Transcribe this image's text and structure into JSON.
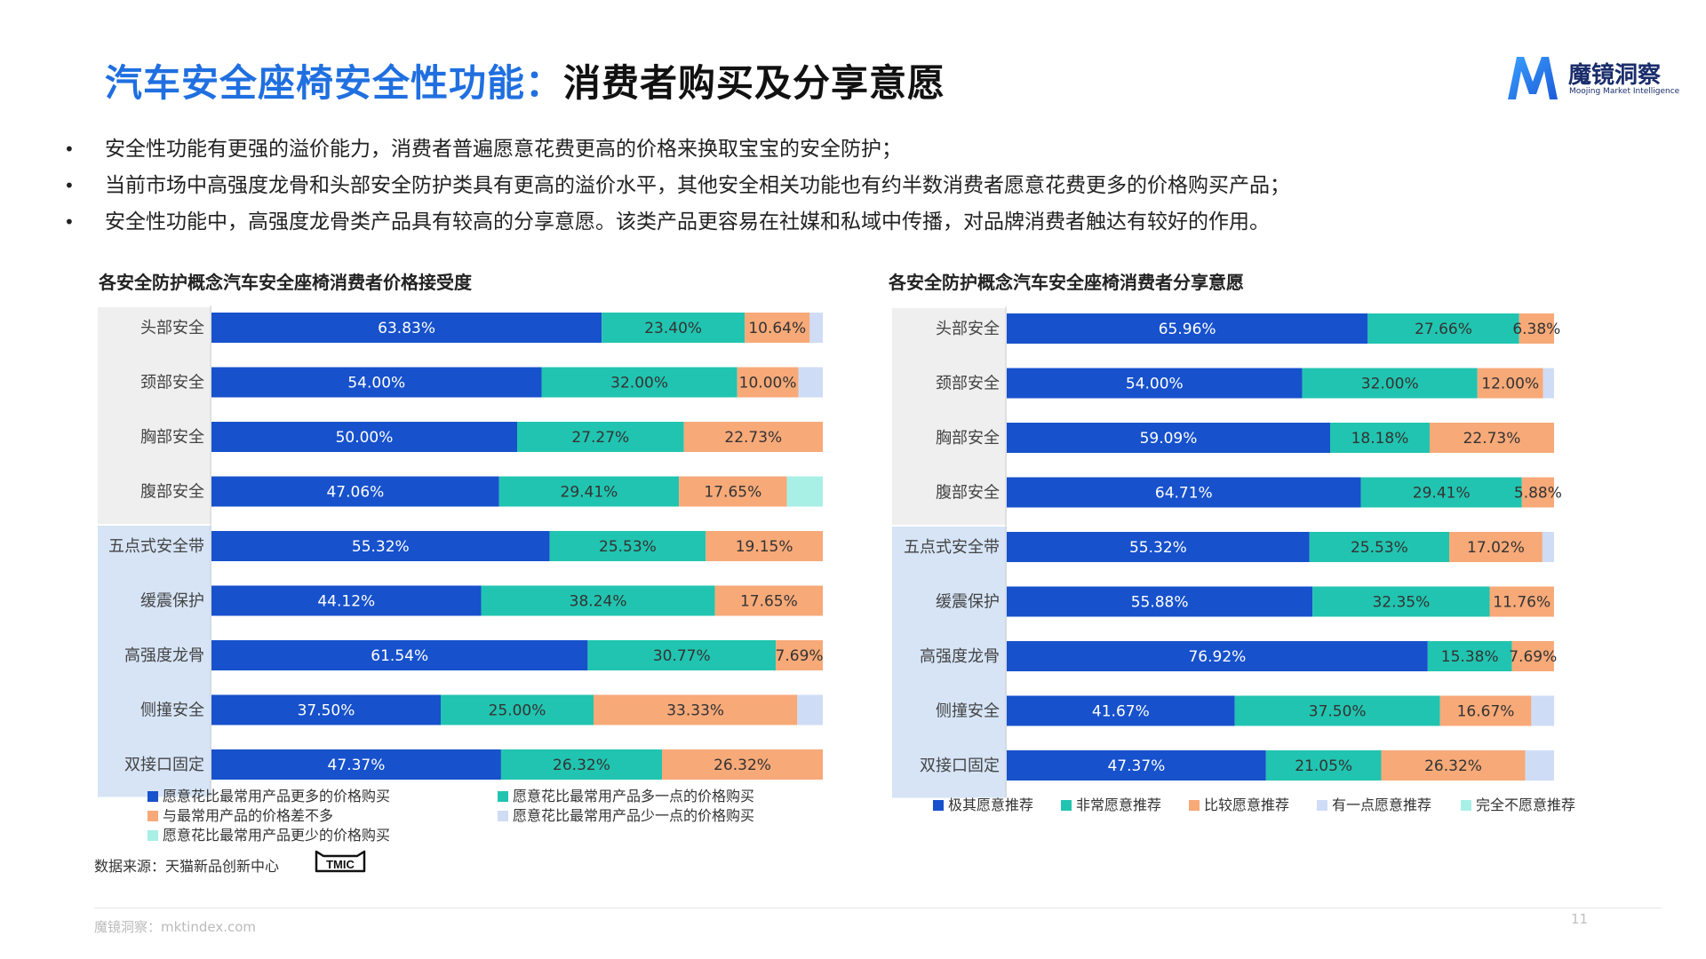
{
  "title": {
    "part1": "汽车安全座椅安全性功能：",
    "part2": "消费者购买及分享意愿"
  },
  "logo": {
    "name": "魔镜洞察",
    "sub": "Moojing Market Intelligence",
    "accent": "#2f7ff0"
  },
  "bullets": [
    "安全性功能有更强的溢价能力，消费者普遍愿意花费更高的价格来换取宝宝的安全防护；",
    "当前市场中高强度龙骨和头部安全防护类具有更高的溢价水平，其他安全相关功能也有约半数消费者愿意花费更多的价格购买产品；",
    "安全性功能中，高强度龙骨类产品具有较高的分享意愿。该类产品更容易在社媒和私域中传播，对品牌消费者触达有较好的作用。"
  ],
  "chart_data": [
    {
      "type": "bar",
      "orientation": "horizontal",
      "stacked": true,
      "title": "各安全防护概念汽车安全座椅消费者价格接受度",
      "categories": [
        "头部安全",
        "颈部安全",
        "胸部安全",
        "腹部安全",
        "五点式安全带",
        "缓震保护",
        "高强度龙骨",
        "侧撞安全",
        "双接口固定"
      ],
      "category_groups": [
        {
          "rows": [
            0,
            1,
            2,
            3
          ],
          "color": "#efefef"
        },
        {
          "rows": [
            4,
            5,
            6,
            7,
            8
          ],
          "color": "#d6e4f6"
        }
      ],
      "xlim": [
        0,
        100
      ],
      "series": [
        {
          "name": "愿意花比最常用产品更多的价格购买",
          "color": "#1751cc",
          "values": [
            63.83,
            54.0,
            50.0,
            47.06,
            55.32,
            44.12,
            61.54,
            37.5,
            47.37
          ]
        },
        {
          "name": "愿意花比最常用产品多一点的价格购买",
          "color": "#21c4b0",
          "values": [
            23.4,
            32.0,
            27.27,
            29.41,
            25.53,
            38.24,
            30.77,
            25.0,
            26.32
          ]
        },
        {
          "name": "与最常用产品的价格差不多",
          "color": "#f7a978",
          "values": [
            10.64,
            10.0,
            22.73,
            17.65,
            19.15,
            17.65,
            7.69,
            33.33,
            26.32
          ]
        },
        {
          "name": "愿意花比最常用产品少一点的价格购买",
          "color": "#cfdcf6",
          "values": [
            2.13,
            4.0,
            0,
            0,
            0,
            0,
            0,
            4.17,
            0
          ]
        },
        {
          "name": "愿意花比最常用产品更少的价格购买",
          "color": "#a8efe6",
          "values": [
            0,
            0,
            0,
            5.88,
            0,
            0,
            0,
            0,
            0
          ]
        }
      ],
      "data_labels": [
        [
          "63.83%",
          "23.40%",
          "10.64%",
          "",
          ""
        ],
        [
          "54.00%",
          "32.00%",
          "10.00%",
          "",
          ""
        ],
        [
          "50.00%",
          "27.27%",
          "22.73%",
          "",
          ""
        ],
        [
          "47.06%",
          "29.41%",
          "17.65%",
          "",
          ""
        ],
        [
          "55.32%",
          "25.53%",
          "19.15%",
          "",
          ""
        ],
        [
          "44.12%",
          "38.24%",
          "17.65%",
          "",
          ""
        ],
        [
          "61.54%",
          "30.77%",
          "7.69%",
          "",
          ""
        ],
        [
          "37.50%",
          "25.00%",
          "33.33%",
          "",
          ""
        ],
        [
          "47.37%",
          "26.32%",
          "26.32%",
          "",
          ""
        ]
      ],
      "legend_placement": "bottom"
    },
    {
      "type": "bar",
      "orientation": "horizontal",
      "stacked": true,
      "title": "各安全防护概念汽车安全座椅消费者分享意愿",
      "categories": [
        "头部安全",
        "颈部安全",
        "胸部安全",
        "腹部安全",
        "五点式安全带",
        "缓震保护",
        "高强度龙骨",
        "侧撞安全",
        "双接口固定"
      ],
      "category_groups": [
        {
          "rows": [
            0,
            1,
            2,
            3
          ],
          "color": "#efefef"
        },
        {
          "rows": [
            4,
            5,
            6,
            7,
            8
          ],
          "color": "#d6e4f6"
        }
      ],
      "xlim": [
        0,
        100
      ],
      "series": [
        {
          "name": "极其愿意推荐",
          "color": "#1751cc",
          "values": [
            65.96,
            54.0,
            59.09,
            64.71,
            55.32,
            55.88,
            76.92,
            41.67,
            47.37
          ]
        },
        {
          "name": "非常愿意推荐",
          "color": "#21c4b0",
          "values": [
            27.66,
            32.0,
            18.18,
            29.41,
            25.53,
            32.35,
            15.38,
            37.5,
            21.05
          ]
        },
        {
          "name": "比较愿意推荐",
          "color": "#f7a978",
          "values": [
            6.38,
            12.0,
            22.73,
            5.88,
            17.02,
            11.76,
            7.69,
            16.67,
            26.32
          ]
        },
        {
          "name": "有一点愿意推荐",
          "color": "#cfdcf6",
          "values": [
            0,
            2.0,
            0,
            0,
            2.13,
            0,
            0,
            4.17,
            5.26
          ]
        },
        {
          "name": "完全不愿意推荐",
          "color": "#a8efe6",
          "values": [
            0,
            0,
            0,
            0,
            0,
            0,
            0,
            0,
            0
          ]
        }
      ],
      "data_labels": [
        [
          "65.96%",
          "27.66%",
          "6.38%",
          "",
          ""
        ],
        [
          "54.00%",
          "32.00%",
          "12.00%",
          "",
          ""
        ],
        [
          "59.09%",
          "18.18%",
          "22.73%",
          "",
          ""
        ],
        [
          "64.71%",
          "29.41%",
          "5.88%",
          "",
          ""
        ],
        [
          "55.32%",
          "25.53%",
          "17.02%",
          "",
          ""
        ],
        [
          "55.88%",
          "32.35%",
          "11.76%",
          "",
          ""
        ],
        [
          "76.92%",
          "15.38%",
          "7.69%",
          "",
          ""
        ],
        [
          "41.67%",
          "37.50%",
          "16.67%",
          "",
          ""
        ],
        [
          "47.37%",
          "21.05%",
          "26.32%",
          "",
          ""
        ]
      ],
      "legend_placement": "bottom"
    }
  ],
  "source": {
    "label": "数据来源：天猫新品创新中心",
    "badge": "TMIC"
  },
  "footer": {
    "text": "魔镜洞察：mktindex.com",
    "page": "11"
  }
}
